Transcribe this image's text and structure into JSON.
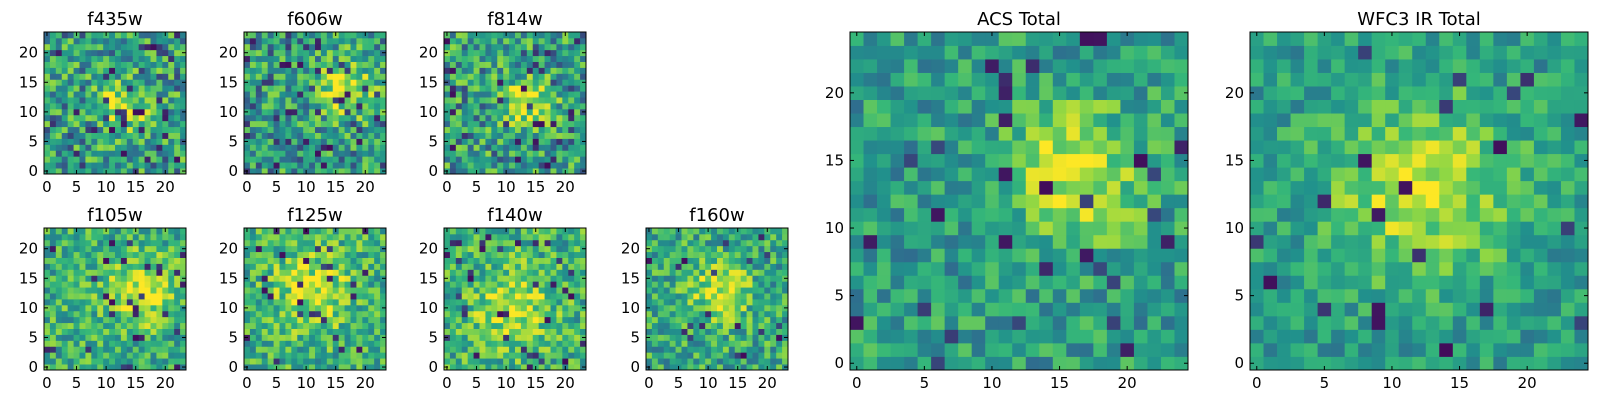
{
  "colormap": [
    "#440154",
    "#31688e",
    "#21918c",
    "#35b779",
    "#8fd744",
    "#fde725"
  ],
  "chart_data": [
    {
      "type": "heatmap",
      "title": "f435w",
      "grid_size": 24,
      "xlim": [
        0,
        24
      ],
      "ylim": [
        0,
        24
      ],
      "xticks": [
        0,
        5,
        10,
        15,
        20
      ],
      "yticks": [
        0,
        5,
        10,
        15,
        20
      ],
      "xtick_labels": [
        "0",
        "5",
        "10",
        "15",
        "20"
      ],
      "ytick_labels": [
        "0",
        "5",
        "10",
        "15",
        "20"
      ],
      "center": [
        13,
        11
      ],
      "sigma": 3.0,
      "peak": 0.45,
      "noise": 0.34,
      "base": 0.48,
      "dips": 0.07,
      "seed": 11
    },
    {
      "type": "heatmap",
      "title": "f606w",
      "grid_size": 24,
      "xlim": [
        0,
        24
      ],
      "ylim": [
        0,
        24
      ],
      "xticks": [
        0,
        5,
        10,
        15,
        20
      ],
      "yticks": [
        0,
        5,
        10,
        15,
        20
      ],
      "xtick_labels": [
        "0",
        "5",
        "10",
        "15",
        "20"
      ],
      "ytick_labels": [
        "0",
        "5",
        "10",
        "15",
        "20"
      ],
      "center": [
        17,
        14
      ],
      "sigma": 3.2,
      "peak": 0.5,
      "noise": 0.33,
      "base": 0.47,
      "dips": 0.07,
      "seed": 23
    },
    {
      "type": "heatmap",
      "title": "f814w",
      "grid_size": 24,
      "xlim": [
        0,
        24
      ],
      "ylim": [
        0,
        24
      ],
      "xticks": [
        0,
        5,
        10,
        15,
        20
      ],
      "yticks": [
        0,
        5,
        10,
        15,
        20
      ],
      "xtick_labels": [
        "0",
        "5",
        "10",
        "15",
        "20"
      ],
      "ytick_labels": [
        "0",
        "5",
        "10",
        "15",
        "20"
      ],
      "center": [
        14,
        12
      ],
      "sigma": 3.0,
      "peak": 0.45,
      "noise": 0.34,
      "base": 0.48,
      "dips": 0.06,
      "seed": 37
    },
    {
      "type": "heatmap",
      "title": "f105w",
      "grid_size": 24,
      "xlim": [
        0,
        24
      ],
      "ylim": [
        0,
        24
      ],
      "xticks": [
        0,
        5,
        10,
        15,
        20
      ],
      "yticks": [
        0,
        5,
        10,
        15,
        20
      ],
      "xtick_labels": [
        "0",
        "5",
        "10",
        "15",
        "20"
      ],
      "ytick_labels": [
        "0",
        "5",
        "10",
        "15",
        "20"
      ],
      "center": [
        16,
        13
      ],
      "sigma": 4.0,
      "peak": 0.38,
      "noise": 0.28,
      "base": 0.55,
      "dips": 0.05,
      "seed": 41
    },
    {
      "type": "heatmap",
      "title": "f125w",
      "grid_size": 24,
      "xlim": [
        0,
        24
      ],
      "ylim": [
        0,
        24
      ],
      "xticks": [
        0,
        5,
        10,
        15,
        20
      ],
      "yticks": [
        0,
        5,
        10,
        15,
        20
      ],
      "xtick_labels": [
        "0",
        "5",
        "10",
        "15",
        "20"
      ],
      "ytick_labels": [
        "0",
        "5",
        "10",
        "15",
        "20"
      ],
      "center": [
        11,
        13
      ],
      "sigma": 4.5,
      "peak": 0.35,
      "noise": 0.28,
      "base": 0.56,
      "dips": 0.04,
      "seed": 53
    },
    {
      "type": "heatmap",
      "title": "f140w",
      "grid_size": 24,
      "xlim": [
        0,
        24
      ],
      "ylim": [
        0,
        24
      ],
      "xticks": [
        0,
        5,
        10,
        15,
        20
      ],
      "yticks": [
        0,
        5,
        10,
        15,
        20
      ],
      "xtick_labels": [
        "0",
        "5",
        "10",
        "15",
        "20"
      ],
      "ytick_labels": [
        "0",
        "5",
        "10",
        "15",
        "20"
      ],
      "center": [
        11,
        10
      ],
      "sigma": 4.5,
      "peak": 0.35,
      "noise": 0.28,
      "base": 0.56,
      "dips": 0.05,
      "seed": 67
    },
    {
      "type": "heatmap",
      "title": "f160w",
      "grid_size": 24,
      "xlim": [
        0,
        24
      ],
      "ylim": [
        0,
        24
      ],
      "xticks": [
        0,
        5,
        10,
        15,
        20
      ],
      "yticks": [
        0,
        5,
        10,
        15,
        20
      ],
      "xtick_labels": [
        "0",
        "5",
        "10",
        "15",
        "20"
      ],
      "ytick_labels": [
        "0",
        "5",
        "10",
        "15",
        "20"
      ],
      "center": [
        12,
        13
      ],
      "sigma": 3.5,
      "peak": 0.4,
      "noise": 0.28,
      "base": 0.52,
      "dips": 0.05,
      "seed": 79
    },
    {
      "type": "heatmap",
      "title": "ACS Total",
      "grid_size": 25,
      "xlim": [
        0,
        25
      ],
      "ylim": [
        0,
        25
      ],
      "xticks": [
        0,
        5,
        10,
        15,
        20
      ],
      "yticks": [
        0,
        5,
        10,
        15,
        20
      ],
      "xtick_labels": [
        "0",
        "5",
        "10",
        "15",
        "20"
      ],
      "ytick_labels": [
        "0",
        "5",
        "10",
        "15",
        "20"
      ],
      "center": [
        16,
        14
      ],
      "sigma": 3.5,
      "peak": 0.5,
      "noise": 0.24,
      "base": 0.46,
      "dips": 0.05,
      "seed": 97
    },
    {
      "type": "heatmap",
      "title": "WFC3 IR Total",
      "grid_size": 25,
      "xlim": [
        0,
        25
      ],
      "ylim": [
        0,
        25
      ],
      "xticks": [
        0,
        5,
        10,
        15,
        20
      ],
      "yticks": [
        0,
        5,
        10,
        15,
        20
      ],
      "xtick_labels": [
        "0",
        "5",
        "10",
        "15",
        "20"
      ],
      "ytick_labels": [
        "0",
        "5",
        "10",
        "15",
        "20"
      ],
      "center": [
        12,
        13
      ],
      "sigma": 5.0,
      "peak": 0.45,
      "noise": 0.2,
      "base": 0.44,
      "dips": 0.04,
      "seed": 113
    }
  ]
}
